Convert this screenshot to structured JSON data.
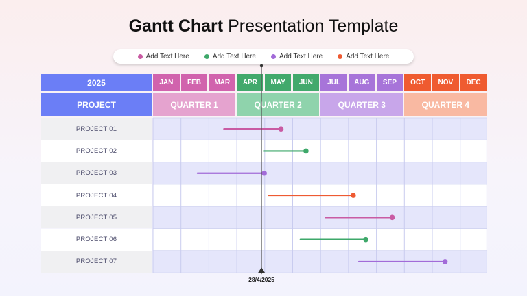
{
  "title": {
    "bold": "Gantt Chart",
    "light": "Presentation Template"
  },
  "legend": [
    {
      "label": "Add Text Here",
      "color": "#c95ba3"
    },
    {
      "label": "Add Text Here",
      "color": "#3ea86a"
    },
    {
      "label": "Add Text Here",
      "color": "#a26bd8"
    },
    {
      "label": "Add Text Here",
      "color": "#ee5a32"
    }
  ],
  "header": {
    "year": "2025",
    "project_label": "PROJECT",
    "year_color": "#6b7ef6",
    "months": [
      {
        "label": "JAN",
        "color": "#d163ad"
      },
      {
        "label": "FEB",
        "color": "#d163ad"
      },
      {
        "label": "MAR",
        "color": "#d163ad"
      },
      {
        "label": "APR",
        "color": "#42a96c"
      },
      {
        "label": "MAY",
        "color": "#42a96c"
      },
      {
        "label": "JUN",
        "color": "#42a96c"
      },
      {
        "label": "JUL",
        "color": "#a774d9"
      },
      {
        "label": "AUG",
        "color": "#a774d9"
      },
      {
        "label": "SEP",
        "color": "#a774d9"
      },
      {
        "label": "OCT",
        "color": "#ef5b30"
      },
      {
        "label": "NOV",
        "color": "#ef5b30"
      },
      {
        "label": "DEC",
        "color": "#ef5b30"
      }
    ],
    "quarters": [
      {
        "label": "QUARTER 1",
        "color": "#e5a3cf"
      },
      {
        "label": "QUARTER 2",
        "color": "#8fd3ac"
      },
      {
        "label": "QUARTER 3",
        "color": "#c8a6ea"
      },
      {
        "label": "QUARTER 4",
        "color": "#f9b9a2"
      }
    ]
  },
  "chart_data": {
    "type": "gantt",
    "x_unit": "month index (0 = start of Jan, 12 = end of Dec)",
    "xlim": [
      0,
      12
    ],
    "today": {
      "label": "28/4/2025",
      "value": 3.9
    },
    "tasks": [
      {
        "name": "PROJECT 01",
        "start": 2.55,
        "end": 4.6,
        "color": "#c95ba3"
      },
      {
        "name": "PROJECT 02",
        "start": 4.0,
        "end": 5.5,
        "color": "#3ea86a"
      },
      {
        "name": "PROJECT 03",
        "start": 1.6,
        "end": 4.0,
        "color": "#a26bd8"
      },
      {
        "name": "PROJECT 04",
        "start": 4.15,
        "end": 7.2,
        "color": "#ee5a32"
      },
      {
        "name": "PROJECT 05",
        "start": 6.2,
        "end": 8.6,
        "color": "#c95ba3"
      },
      {
        "name": "PROJECT 06",
        "start": 5.3,
        "end": 7.65,
        "color": "#3ea86a"
      },
      {
        "name": "PROJECT 07",
        "start": 7.4,
        "end": 10.5,
        "color": "#a26bd8"
      }
    ]
  }
}
